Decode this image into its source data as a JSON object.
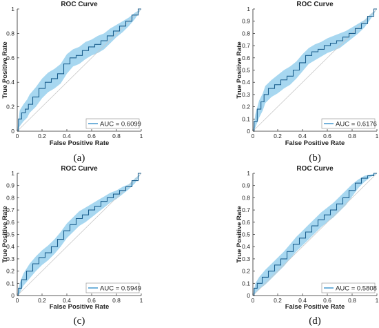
{
  "colors": {
    "band": "#a7d7f0",
    "line": "#1b5f8e",
    "legend_line": "#0072bd",
    "diagonal": "#c8c8c8",
    "axis": "#262626"
  },
  "chart_data": [
    {
      "type": "line",
      "title": "ROC Curve",
      "xlabel": "False Positive Rate",
      "ylabel": "True Positive Rate",
      "panel_label": "(a)",
      "xlim": [
        0,
        1
      ],
      "ylim": [
        0,
        1
      ],
      "xticks": [
        "0",
        "0.2",
        "0.4",
        "0.6",
        "0.8",
        "1"
      ],
      "yticks": [
        "0",
        "0.2",
        "0.4",
        "0.6",
        "0.8",
        "1"
      ],
      "grid": false,
      "legend": "AUC = 0.6099",
      "legend_position": "bottom-right",
      "series": [
        {
          "x": [
            0,
            0.02,
            0.05,
            0.08,
            0.1,
            0.15,
            0.2,
            0.25,
            0.3,
            0.35,
            0.4,
            0.45,
            0.5,
            0.55,
            0.6,
            0.65,
            0.7,
            0.75,
            0.8,
            0.85,
            0.9,
            0.95,
            1
          ],
          "y": [
            0,
            0.1,
            0.15,
            0.18,
            0.22,
            0.28,
            0.35,
            0.4,
            0.43,
            0.47,
            0.55,
            0.6,
            0.62,
            0.66,
            0.69,
            0.71,
            0.74,
            0.78,
            0.82,
            0.86,
            0.9,
            0.95,
            1
          ],
          "lower": [
            0,
            0.04,
            0.08,
            0.11,
            0.15,
            0.2,
            0.27,
            0.32,
            0.35,
            0.39,
            0.47,
            0.53,
            0.55,
            0.59,
            0.62,
            0.64,
            0.67,
            0.72,
            0.77,
            0.81,
            0.86,
            0.92,
            1
          ],
          "upper": [
            0,
            0.17,
            0.22,
            0.26,
            0.3,
            0.36,
            0.43,
            0.48,
            0.51,
            0.55,
            0.63,
            0.67,
            0.69,
            0.73,
            0.75,
            0.78,
            0.8,
            0.84,
            0.87,
            0.9,
            0.93,
            0.97,
            1
          ]
        }
      ]
    },
    {
      "type": "line",
      "title": "ROC Curve",
      "xlabel": "False Positive Rate",
      "ylabel": "True Positive Rate",
      "panel_label": "(b)",
      "xlim": [
        0,
        1
      ],
      "ylim": [
        0,
        1
      ],
      "xticks": [
        "0",
        "0.2",
        "0.4",
        "0.6",
        "0.8",
        "1"
      ],
      "yticks": [
        "0",
        "0.1",
        "0.2",
        "0.3",
        "0.4",
        "0.5",
        "0.6",
        "0.7",
        "0.8",
        "0.9",
        "1"
      ],
      "grid": false,
      "legend": "AUC = 0.6176",
      "legend_position": "bottom-right",
      "series": [
        {
          "x": [
            0,
            0.02,
            0.05,
            0.08,
            0.1,
            0.15,
            0.2,
            0.25,
            0.3,
            0.35,
            0.4,
            0.45,
            0.5,
            0.55,
            0.6,
            0.65,
            0.7,
            0.75,
            0.8,
            0.85,
            0.9,
            0.95,
            1
          ],
          "y": [
            0,
            0.08,
            0.18,
            0.24,
            0.3,
            0.35,
            0.38,
            0.42,
            0.45,
            0.5,
            0.56,
            0.62,
            0.65,
            0.67,
            0.7,
            0.72,
            0.74,
            0.77,
            0.8,
            0.84,
            0.88,
            0.94,
            1
          ],
          "lower": [
            0,
            0.03,
            0.11,
            0.17,
            0.23,
            0.28,
            0.31,
            0.35,
            0.38,
            0.43,
            0.49,
            0.55,
            0.58,
            0.61,
            0.64,
            0.66,
            0.68,
            0.72,
            0.76,
            0.8,
            0.85,
            0.92,
            1
          ],
          "upper": [
            0,
            0.14,
            0.25,
            0.31,
            0.37,
            0.42,
            0.46,
            0.5,
            0.53,
            0.57,
            0.63,
            0.68,
            0.71,
            0.73,
            0.76,
            0.78,
            0.8,
            0.82,
            0.85,
            0.88,
            0.91,
            0.96,
            1
          ]
        }
      ]
    },
    {
      "type": "line",
      "title": "ROC Curve",
      "xlabel": "False Positive Rate",
      "ylabel": "True Positive Rate",
      "panel_label": "(c)",
      "xlim": [
        0,
        1
      ],
      "ylim": [
        0,
        1
      ],
      "xticks": [
        "0",
        "0.2",
        "0.4",
        "0.6",
        "0.8",
        "1"
      ],
      "yticks": [
        "0",
        "0.1",
        "0.2",
        "0.3",
        "0.4",
        "0.5",
        "0.6",
        "0.7",
        "0.8",
        "0.9",
        "1"
      ],
      "grid": false,
      "legend": "AUC = 0.5949",
      "legend_position": "bottom-right",
      "series": [
        {
          "x": [
            0,
            0.02,
            0.05,
            0.1,
            0.15,
            0.2,
            0.25,
            0.3,
            0.35,
            0.4,
            0.45,
            0.5,
            0.55,
            0.6,
            0.65,
            0.7,
            0.75,
            0.8,
            0.85,
            0.9,
            0.95,
            1
          ],
          "y": [
            0,
            0.06,
            0.13,
            0.2,
            0.26,
            0.31,
            0.35,
            0.4,
            0.46,
            0.53,
            0.58,
            0.63,
            0.66,
            0.7,
            0.73,
            0.77,
            0.8,
            0.83,
            0.86,
            0.89,
            0.94,
            1
          ],
          "lower": [
            0,
            0.02,
            0.08,
            0.14,
            0.2,
            0.25,
            0.29,
            0.34,
            0.4,
            0.47,
            0.52,
            0.57,
            0.6,
            0.64,
            0.68,
            0.72,
            0.76,
            0.79,
            0.83,
            0.87,
            0.92,
            1
          ],
          "upper": [
            0,
            0.1,
            0.18,
            0.26,
            0.32,
            0.37,
            0.41,
            0.46,
            0.52,
            0.59,
            0.64,
            0.69,
            0.72,
            0.75,
            0.78,
            0.81,
            0.84,
            0.86,
            0.89,
            0.91,
            0.96,
            1
          ]
        }
      ]
    },
    {
      "type": "line",
      "title": "ROC Curve",
      "xlabel": "False Positive Rate",
      "ylabel": "True Positive Rate",
      "panel_label": "(d)",
      "xlim": [
        0,
        1
      ],
      "ylim": [
        0,
        1
      ],
      "xticks": [
        "0",
        "0.2",
        "0.4",
        "0.6",
        "0.8",
        "1"
      ],
      "yticks": [
        "0",
        "0.1",
        "0.2",
        "0.3",
        "0.4",
        "0.5",
        "0.6",
        "0.7",
        "0.8",
        "0.9",
        "1"
      ],
      "grid": false,
      "legend": "AUC = 0.5808",
      "legend_position": "bottom-right",
      "series": [
        {
          "x": [
            0,
            0.02,
            0.05,
            0.1,
            0.15,
            0.2,
            0.25,
            0.3,
            0.35,
            0.4,
            0.45,
            0.5,
            0.55,
            0.6,
            0.65,
            0.7,
            0.75,
            0.8,
            0.85,
            0.9,
            0.95,
            1
          ],
          "y": [
            0,
            0.06,
            0.1,
            0.15,
            0.2,
            0.25,
            0.3,
            0.36,
            0.42,
            0.47,
            0.52,
            0.57,
            0.62,
            0.66,
            0.7,
            0.75,
            0.8,
            0.86,
            0.92,
            0.96,
            0.98,
            1
          ],
          "lower": [
            0,
            0.02,
            0.05,
            0.09,
            0.14,
            0.19,
            0.24,
            0.3,
            0.36,
            0.41,
            0.46,
            0.51,
            0.56,
            0.6,
            0.64,
            0.69,
            0.74,
            0.81,
            0.88,
            0.93,
            0.97,
            1
          ],
          "upper": [
            0,
            0.1,
            0.15,
            0.21,
            0.26,
            0.31,
            0.36,
            0.42,
            0.48,
            0.53,
            0.58,
            0.63,
            0.68,
            0.72,
            0.76,
            0.81,
            0.86,
            0.91,
            0.95,
            0.98,
            0.99,
            1
          ]
        }
      ]
    }
  ]
}
